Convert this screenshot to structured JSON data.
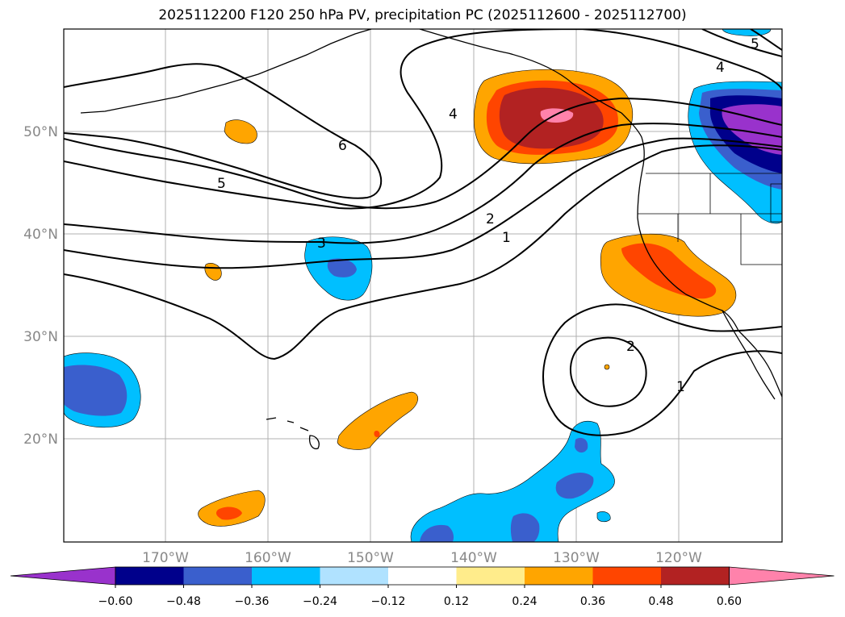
{
  "title": "2025112200 F120 250 hPa PV, precipitation PC (2025112600 - 2025112700)",
  "lat_labels": [
    "50°N",
    "40°N",
    "30°N",
    "20°N"
  ],
  "lon_labels": [
    "170°W",
    "160°W",
    "150°W",
    "140°W",
    "130°W",
    "120°W"
  ],
  "contour_labels": [
    "6",
    "5",
    "4",
    "4",
    "3",
    "2",
    "1",
    "2",
    "1",
    "5"
  ],
  "colorbar": {
    "tick_labels": [
      "−0.60",
      "−0.48",
      "−0.36",
      "−0.24",
      "−0.12",
      "0.12",
      "0.24",
      "0.36",
      "0.48",
      "0.60"
    ],
    "colors": [
      "#9932cc",
      "#00008b",
      "#3a5fcd",
      "#00bfff",
      "#b0e2ff",
      "#ffffff",
      "#ffec8b",
      "#ffa500",
      "#ff4500",
      "#b22222",
      "#ff82ab"
    ]
  },
  "colors": {
    "pos_low": "#ffa500",
    "pos_mid": "#ff4500",
    "pos_high": "#b22222",
    "pos_max": "#ff82ab",
    "neg_low": "#00bfff",
    "neg_mid": "#3a5fcd",
    "neg_high": "#00008b",
    "neg_max": "#9932cc"
  }
}
